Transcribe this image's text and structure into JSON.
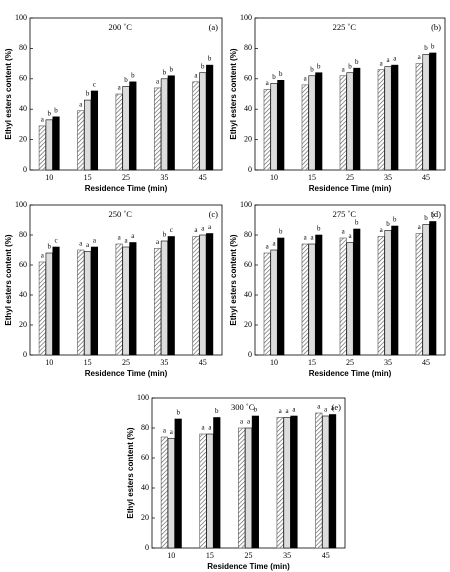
{
  "chart_data": [
    {
      "type": "bar",
      "title": "200 ˚C",
      "panel_label": "(a)",
      "x_label": "Residence Time (min)",
      "y_label": "Ethyl esters content (%)",
      "categories": [
        "10",
        "15",
        "25",
        "35",
        "45"
      ],
      "ylim": [
        0,
        100
      ],
      "yticks": [
        0,
        20,
        40,
        60,
        80,
        100
      ],
      "series": [
        {
          "color": "#555555",
          "hatch": true,
          "values": [
            29,
            39,
            50,
            54,
            58
          ],
          "labels": [
            "a",
            "a",
            "a",
            "a",
            "a"
          ]
        },
        {
          "color": "#dddddd",
          "hatch": false,
          "values": [
            33,
            46,
            55,
            60,
            64
          ],
          "labels": [
            "b",
            "b",
            "b",
            "b",
            "b"
          ]
        },
        {
          "color": "#000000",
          "hatch": false,
          "values": [
            35,
            52,
            58,
            62,
            69
          ],
          "labels": [
            "b",
            "c",
            "b",
            "b",
            "b"
          ]
        }
      ]
    },
    {
      "type": "bar",
      "title": "225 ˚C",
      "panel_label": "(b)",
      "x_label": "Residence Time (min)",
      "y_label": "Ethyl esters content (%)",
      "categories": [
        "10",
        "15",
        "25",
        "35",
        "45"
      ],
      "ylim": [
        0,
        100
      ],
      "yticks": [
        0,
        20,
        40,
        60,
        80,
        100
      ],
      "series": [
        {
          "color": "#555555",
          "hatch": true,
          "values": [
            53,
            56,
            62,
            66,
            70
          ],
          "labels": [
            "a",
            "a",
            "a",
            "a",
            "a"
          ]
        },
        {
          "color": "#dddddd",
          "hatch": false,
          "values": [
            57,
            62,
            64,
            68,
            76
          ],
          "labels": [
            "b",
            "b",
            "b",
            "a",
            "b"
          ]
        },
        {
          "color": "#000000",
          "hatch": false,
          "values": [
            59,
            64,
            67,
            69,
            77
          ],
          "labels": [
            "b",
            "b",
            "b",
            "a",
            "b"
          ]
        }
      ]
    },
    {
      "type": "bar",
      "title": "250 ˚C",
      "panel_label": "(c)",
      "x_label": "Residence Time (min)",
      "y_label": "Ethyl esters content (%)",
      "categories": [
        "10",
        "15",
        "25",
        "35",
        "45"
      ],
      "ylim": [
        0,
        100
      ],
      "yticks": [
        0,
        20,
        40,
        60,
        80,
        100
      ],
      "series": [
        {
          "color": "#555555",
          "hatch": true,
          "values": [
            62,
            70,
            74,
            71,
            79
          ],
          "labels": [
            "a",
            "a",
            "a",
            "a",
            "a"
          ]
        },
        {
          "color": "#dddddd",
          "hatch": false,
          "values": [
            68,
            69,
            72,
            76,
            80
          ],
          "labels": [
            "b",
            "a",
            "a",
            "b",
            "a"
          ]
        },
        {
          "color": "#000000",
          "hatch": false,
          "values": [
            72,
            72,
            75,
            79,
            81
          ],
          "labels": [
            "c",
            "a",
            "a",
            "c",
            "a"
          ]
        }
      ]
    },
    {
      "type": "bar",
      "title": "275 ˚C",
      "panel_label": "(d)",
      "x_label": "Residence Time (min)",
      "y_label": "Ethyl esters content (%)",
      "categories": [
        "10",
        "15",
        "25",
        "35",
        "45"
      ],
      "ylim": [
        0,
        100
      ],
      "yticks": [
        0,
        20,
        40,
        60,
        80,
        100
      ],
      "series": [
        {
          "color": "#555555",
          "hatch": true,
          "values": [
            68,
            74,
            78,
            79,
            81
          ],
          "labels": [
            "a",
            "a",
            "a",
            "a",
            "a"
          ]
        },
        {
          "color": "#dddddd",
          "hatch": false,
          "values": [
            70,
            74,
            75,
            83,
            87
          ],
          "labels": [
            "a",
            "a",
            "a",
            "b",
            "b"
          ]
        },
        {
          "color": "#000000",
          "hatch": false,
          "values": [
            78,
            80,
            84,
            86,
            89
          ],
          "labels": [
            "b",
            "b",
            "b",
            "b",
            "b"
          ]
        }
      ]
    },
    {
      "type": "bar",
      "title": "300 ˚C",
      "panel_label": "(e)",
      "x_label": "Residence Time (min)",
      "y_label": "Ethyl esters content (%)",
      "categories": [
        "10",
        "15",
        "25",
        "35",
        "45"
      ],
      "ylim": [
        0,
        100
      ],
      "yticks": [
        0,
        20,
        40,
        60,
        80,
        100
      ],
      "series": [
        {
          "color": "#555555",
          "hatch": true,
          "values": [
            74,
            76,
            80,
            87,
            90
          ],
          "labels": [
            "a",
            "a",
            "a",
            "a",
            "a"
          ]
        },
        {
          "color": "#dddddd",
          "hatch": false,
          "values": [
            73,
            76,
            80,
            87,
            88
          ],
          "labels": [
            "a",
            "a",
            "a",
            "a",
            "a"
          ]
        },
        {
          "color": "#000000",
          "hatch": false,
          "values": [
            86,
            87,
            88,
            88,
            89
          ],
          "labels": [
            "b",
            "b",
            "b",
            "a",
            "a"
          ]
        }
      ]
    }
  ]
}
